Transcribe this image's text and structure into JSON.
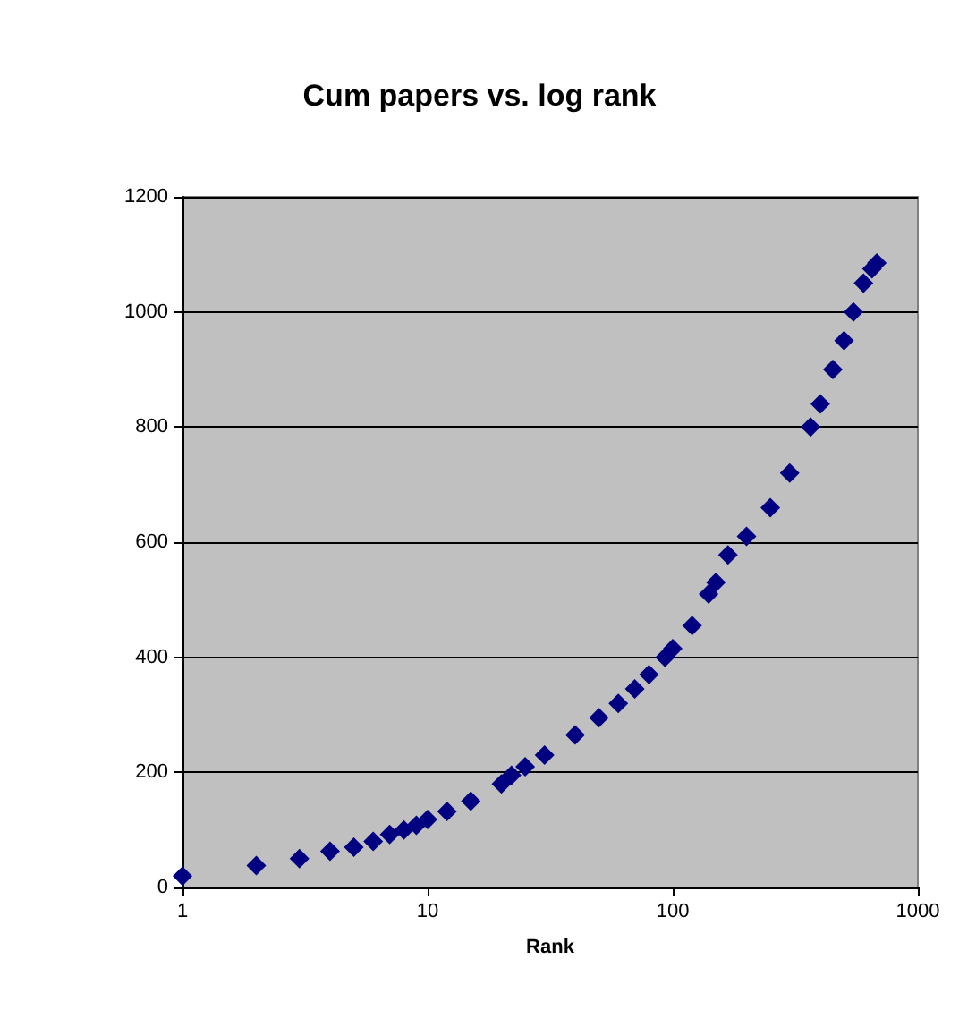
{
  "chart_data": {
    "type": "scatter",
    "title": "Cum papers vs. log rank",
    "xlabel": "Rank",
    "x": [
      1,
      2,
      3,
      4,
      5,
      6,
      7,
      8,
      9,
      10,
      12,
      15,
      20,
      22,
      25,
      30,
      40,
      50,
      60,
      70,
      80,
      93,
      100,
      120,
      140,
      150,
      168,
      200,
      250,
      300,
      365,
      400,
      450,
      500,
      546,
      600,
      650,
      680
    ],
    "series": [
      {
        "color": "#000080",
        "values": [
          20,
          38,
          50,
          63,
          70,
          80,
          92,
          100,
          108,
          118,
          132,
          150,
          180,
          195,
          210,
          230,
          265,
          295,
          320,
          345,
          370,
          400,
          415,
          455,
          510,
          530,
          578,
          610,
          660,
          720,
          800,
          840,
          900,
          950,
          1000,
          1050,
          1075,
          1085
        ]
      }
    ],
    "log": "x",
    "xlim": [
      1,
      1000
    ],
    "xticks": [
      1,
      10,
      100,
      1000
    ],
    "ylim": [
      0,
      1200
    ],
    "yticks": [
      0,
      200,
      400,
      600,
      800,
      1000,
      1200
    ],
    "grid": "y",
    "marker": "diamond"
  }
}
